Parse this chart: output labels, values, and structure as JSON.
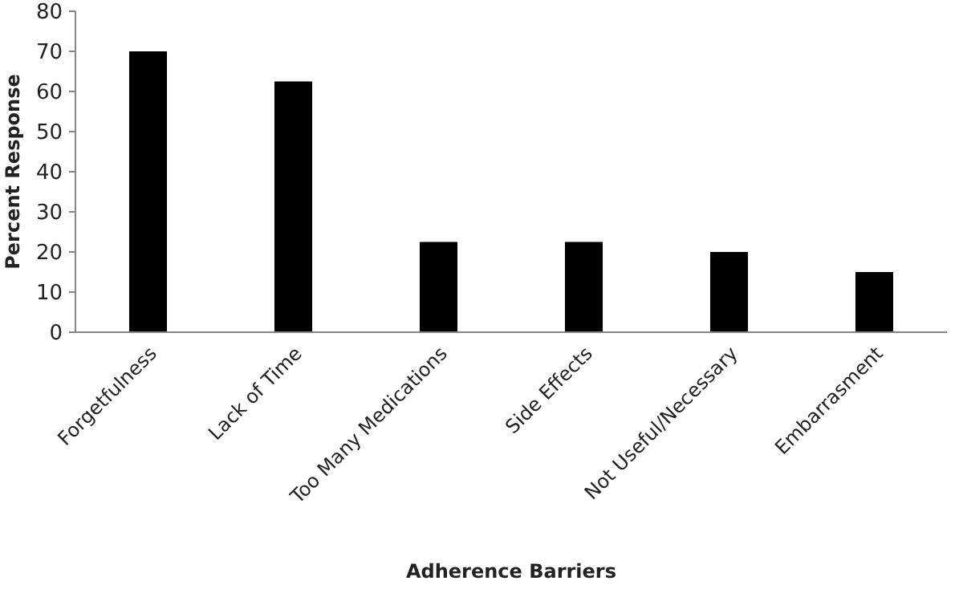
{
  "chart_data": {
    "type": "bar",
    "xlabel": "Adherence Barriers",
    "ylabel": "Percent Response",
    "categories": [
      "Forgetfulness",
      "Lack of Time",
      "Too Many Medications",
      "Side Effects",
      "Not Useful/Necessary",
      "Embarrasment"
    ],
    "values": [
      70,
      62.5,
      22.5,
      22.5,
      20,
      15
    ],
    "color": "#000000",
    "ylim": [
      0,
      80
    ],
    "yticks": [
      0,
      10,
      20,
      30,
      40,
      50,
      60,
      70,
      80
    ],
    "grid": false
  }
}
